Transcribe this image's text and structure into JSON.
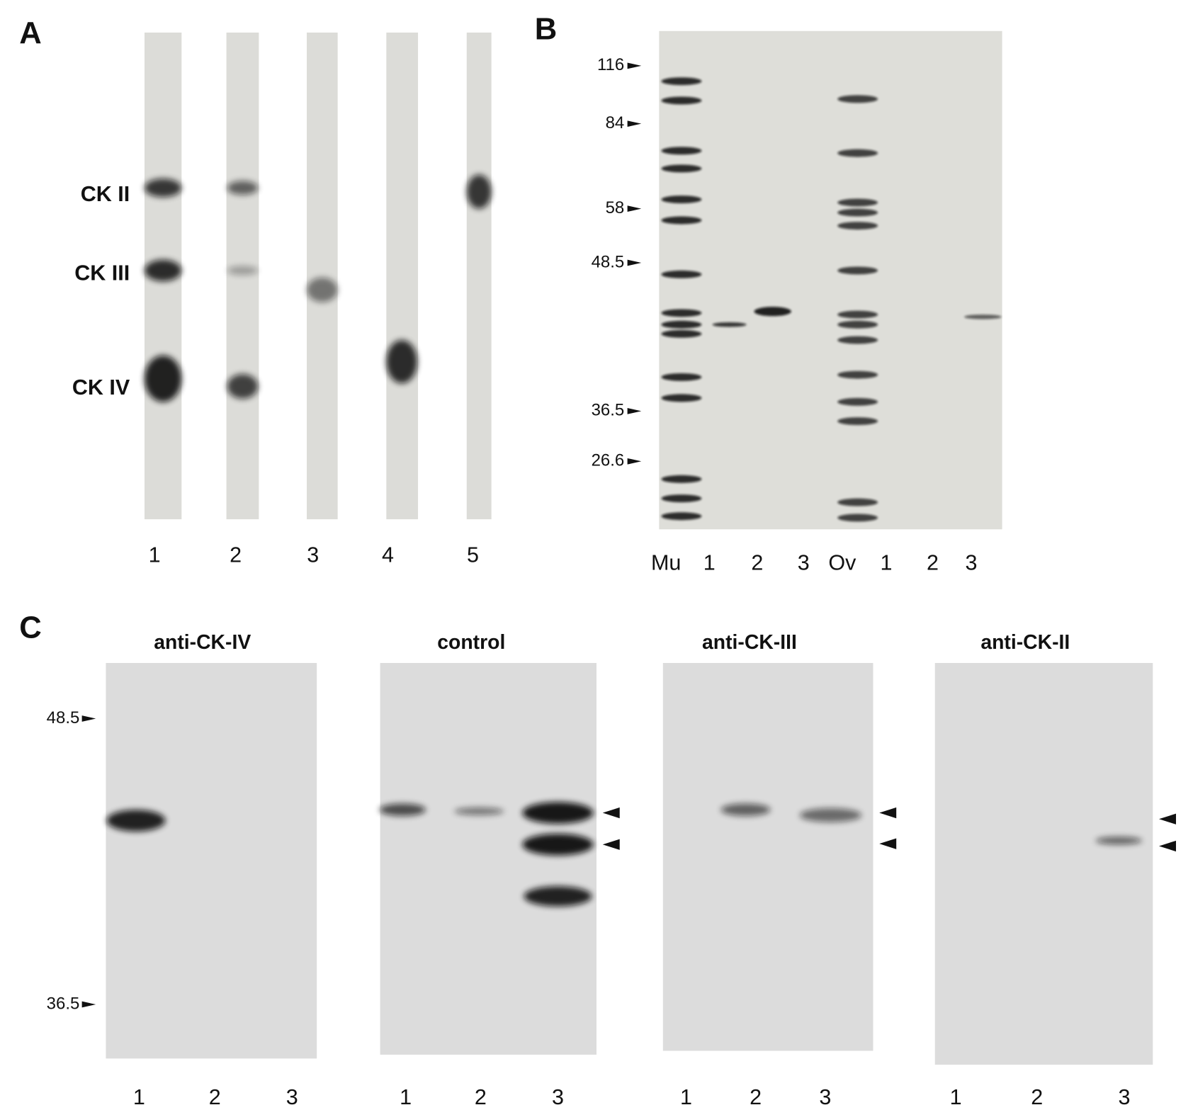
{
  "panel_a": {
    "label": "A",
    "markers": [
      "CK II",
      "CK III",
      "CK IV"
    ],
    "lanes": [
      "1",
      "2",
      "3",
      "4",
      "5"
    ]
  },
  "panel_b": {
    "label": "B",
    "mw_markers": [
      "116",
      "84",
      "58",
      "48.5",
      "36.5",
      "26.6"
    ],
    "lanes": [
      "Mu",
      "1",
      "2",
      "3",
      "Ov",
      "1",
      "2",
      "3"
    ]
  },
  "panel_c": {
    "label": "C",
    "mw_markers": [
      "48.5",
      "36.5"
    ],
    "blots": [
      {
        "title": "anti-CK-IV",
        "lanes": [
          "1",
          "2",
          "3"
        ]
      },
      {
        "title": "control",
        "lanes": [
          "1",
          "2",
          "3"
        ]
      },
      {
        "title": "anti-CK-III",
        "lanes": [
          "1",
          "2",
          "3"
        ]
      },
      {
        "title": "anti-CK-II",
        "lanes": [
          "1",
          "2",
          "3"
        ]
      }
    ]
  }
}
